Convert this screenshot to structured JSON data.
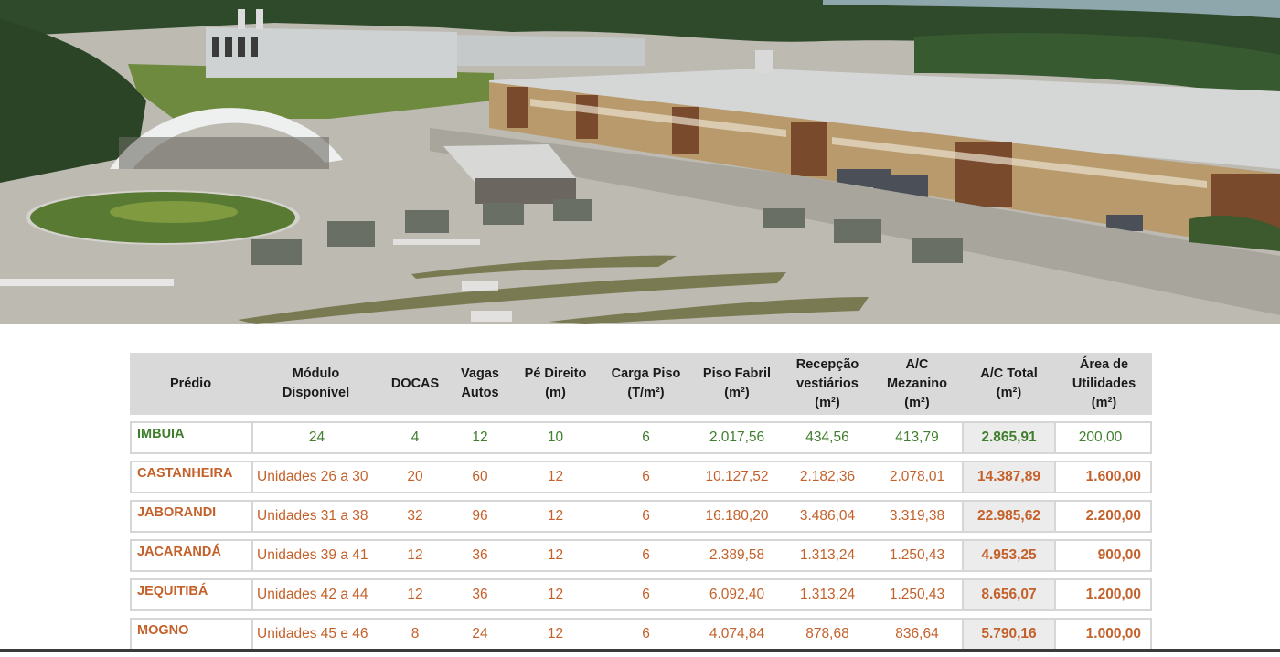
{
  "photo": {
    "alt": "Vista aérea do condomínio logístico",
    "colors": {
      "sky": "#9fb3b8",
      "forest": "#2f4a2a",
      "grass": "#6e8a3e",
      "pavement": "#bdbab2",
      "roof": "#cfd2d2",
      "facade": "#b89a6c",
      "brick": "#7a4a2c"
    }
  },
  "table": {
    "headers": {
      "predio": "Prédio",
      "modulo": "Módulo\nDisponível",
      "docas": "DOCAS",
      "vagas": "Vagas\nAutos",
      "pe_direito": "Pé Direito\n(m)",
      "carga_piso": "Carga Piso\n(T/m²)",
      "piso_fabril": "Piso Fabril\n(m²)",
      "recepcao": "Recepção\nvestiários\n(m²)",
      "ac_mezanino": "A/C\nMezanino\n(m²)",
      "ac_total": "A/C Total\n(m²)",
      "area_util": "Área de\nUtilidades\n(m²)"
    },
    "rows": [
      {
        "predio": "IMBUIA",
        "modulo": "24",
        "docas": "4",
        "vagas": "12",
        "pe_direito": "10",
        "carga_piso": "6",
        "piso_fabril": "2.017,56",
        "recepcao": "434,56",
        "ac_mezanino": "413,79",
        "ac_total": "2.865,91",
        "area_util": "200,00"
      },
      {
        "predio": "CASTANHEIRA",
        "modulo": "Unidades 26 a 30",
        "docas": "20",
        "vagas": "60",
        "pe_direito": "12",
        "carga_piso": "6",
        "piso_fabril": "10.127,52",
        "recepcao": "2.182,36",
        "ac_mezanino": "2.078,01",
        "ac_total": "14.387,89",
        "area_util": "1.600,00"
      },
      {
        "predio": "JABORANDI",
        "modulo": "Unidades 31 a 38",
        "docas": "32",
        "vagas": "96",
        "pe_direito": "12",
        "carga_piso": "6",
        "piso_fabril": "16.180,20",
        "recepcao": "3.486,04",
        "ac_mezanino": "3.319,38",
        "ac_total": "22.985,62",
        "area_util": "2.200,00"
      },
      {
        "predio": "JACARANDÁ",
        "modulo": "Unidades 39 a 41",
        "docas": "12",
        "vagas": "36",
        "pe_direito": "12",
        "carga_piso": "6",
        "piso_fabril": "2.389,58",
        "recepcao": "1.313,24",
        "ac_mezanino": "1.250,43",
        "ac_total": "4.953,25",
        "area_util": "900,00"
      },
      {
        "predio": "JEQUITIBÁ",
        "modulo": "Unidades 42 a 44",
        "docas": "12",
        "vagas": "36",
        "pe_direito": "12",
        "carga_piso": "6",
        "piso_fabril": "6.092,40",
        "recepcao": "1.313,24",
        "ac_mezanino": "1.250,43",
        "ac_total": "8.656,07",
        "area_util": "1.200,00"
      },
      {
        "predio": "MOGNO",
        "modulo": "Unidades 45 e 46",
        "docas": "8",
        "vagas": "24",
        "pe_direito": "12",
        "carga_piso": "6",
        "piso_fabril": "4.074,84",
        "recepcao": "878,68",
        "ac_mezanino": "836,64",
        "ac_total": "5.790,16",
        "area_util": "1.000,00"
      }
    ],
    "colors": {
      "header_bg": "#d9d9d9",
      "green_text": "#3f7f2e",
      "orange_text": "#c4612a",
      "total_bg": "#ececec"
    }
  }
}
